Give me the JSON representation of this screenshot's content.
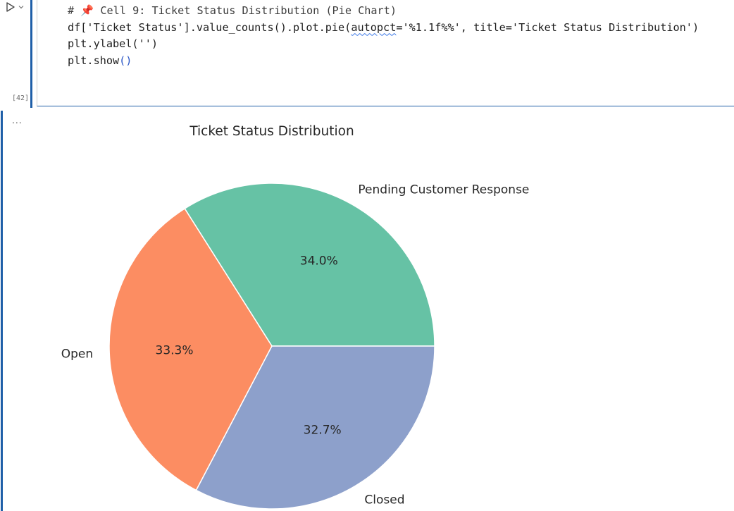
{
  "cell": {
    "execution_count": "[42]",
    "code_lines": {
      "l1_hash": "# ",
      "l1_pin": "📌",
      "l1_text": " Cell 9: Ticket Status Distribution (Pie Chart)",
      "l2_a": "df['Ticket Status'].value_counts().plot.pie(",
      "l2_b": "autopct",
      "l2_c": "='%1.1f%%', title='Ticket Status Distribution')",
      "l3_a": "plt.ylabel(",
      "l3_b": "''",
      "l3_c": ")",
      "l4_a": "plt.show",
      "l4_b": "()"
    }
  },
  "output": {
    "more_label": "..."
  },
  "colors": {
    "pending": "#66c2a5",
    "open": "#fc8d62",
    "closed": "#8da0cb",
    "accent": "#1f5fa8"
  },
  "chart_data": {
    "type": "pie",
    "title": "Ticket Status Distribution",
    "categories": [
      "Pending Customer Response",
      "Open",
      "Closed"
    ],
    "values": [
      34.0,
      33.3,
      32.7
    ],
    "value_labels": [
      "34.0%",
      "33.3%",
      "32.7%"
    ],
    "start_angle_deg": 0,
    "direction": "counterclockwise",
    "colors": [
      "#66c2a5",
      "#fc8d62",
      "#8da0cb"
    ]
  }
}
